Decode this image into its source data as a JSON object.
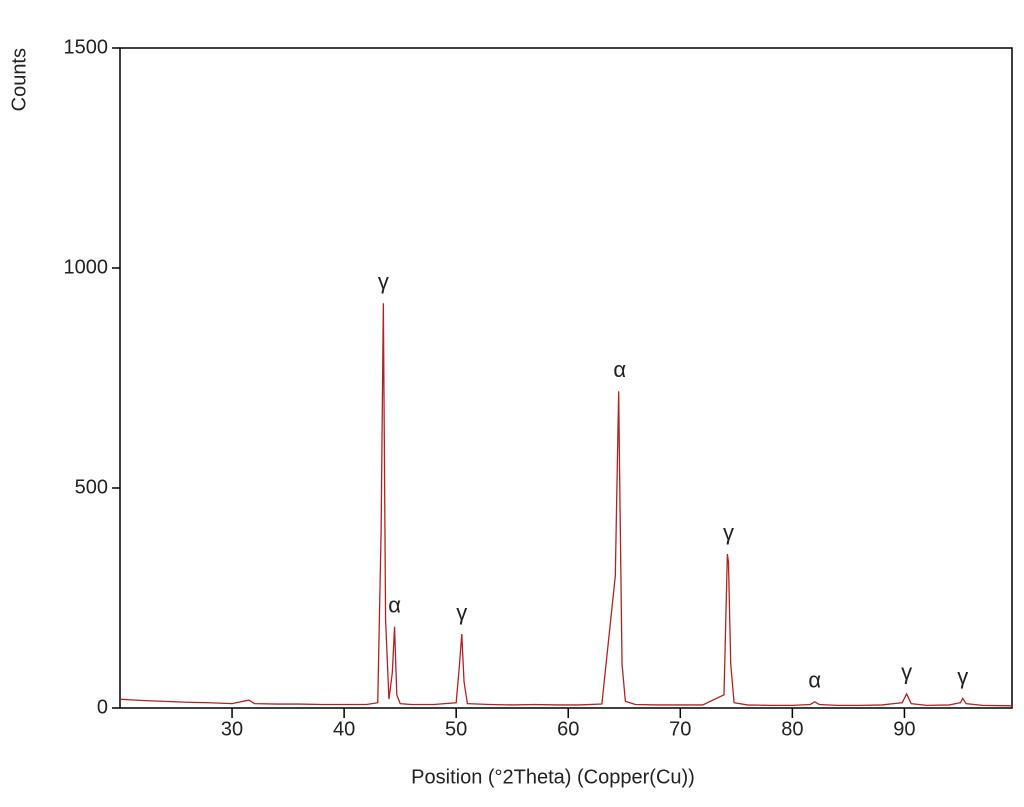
{
  "chart_data": {
    "type": "line",
    "y_label": "Counts",
    "x_label": "Position (°2Theta) (Copper(Cu))",
    "x": [
      20,
      22,
      24,
      26,
      28,
      30,
      31.5,
      32,
      34,
      36,
      38,
      40,
      42,
      43,
      43.3,
      43.5,
      43.7,
      44,
      44.3,
      44.5,
      44.7,
      45,
      46,
      48,
      50,
      50.3,
      50.5,
      50.7,
      51,
      53,
      55,
      57,
      59,
      61,
      63,
      64.2,
      64.5,
      64.6,
      64.8,
      65.1,
      66,
      68,
      70,
      72,
      73.9,
      74.2,
      74.3,
      74.5,
      74.8,
      76,
      78,
      80,
      81.6,
      82,
      82.4,
      84,
      86,
      88,
      89.8,
      90.2,
      90.6,
      92,
      94,
      95,
      95.2,
      95.5,
      97,
      99.6
    ],
    "series": [
      {
        "color": "#b22222",
        "values": [
          20,
          17,
          15,
          13,
          12,
          10,
          18,
          10,
          9,
          9,
          8,
          8,
          8,
          12,
          400,
          920,
          200,
          20,
          80,
          185,
          30,
          10,
          8,
          8,
          12,
          100,
          168,
          60,
          10,
          8,
          7,
          8,
          7,
          7,
          9,
          300,
          720,
          500,
          100,
          15,
          8,
          7,
          7,
          7,
          30,
          350,
          330,
          100,
          12,
          7,
          6,
          6,
          8,
          14,
          8,
          6,
          6,
          7,
          12,
          32,
          10,
          6,
          7,
          12,
          22,
          10,
          6,
          5
        ]
      }
    ],
    "annotations": [
      {
        "text": "γ",
        "x": 43.5,
        "y": 920
      },
      {
        "text": "α",
        "x": 44.5,
        "y": 185
      },
      {
        "text": "γ",
        "x": 50.5,
        "y": 168
      },
      {
        "text": "α",
        "x": 64.6,
        "y": 720
      },
      {
        "text": "γ",
        "x": 74.3,
        "y": 350
      },
      {
        "text": "α",
        "x": 82,
        "y": 14
      },
      {
        "text": "γ",
        "x": 90.2,
        "y": 32
      },
      {
        "text": "γ",
        "x": 95.2,
        "y": 22
      }
    ],
    "xlim": [
      20,
      99.6
    ],
    "ylim": [
      0,
      1500
    ],
    "xticks": [
      30,
      40,
      50,
      60,
      70,
      80,
      90
    ],
    "yticks": [
      0,
      500,
      1000,
      1500
    ],
    "grid": false
  }
}
